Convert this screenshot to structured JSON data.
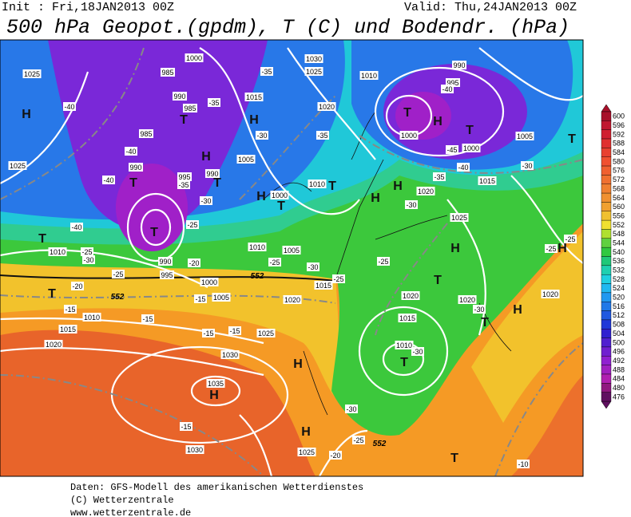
{
  "header": {
    "init": "Init : Fri,18JAN2013 00Z",
    "valid": "Valid: Thu,24JAN2013 00Z",
    "title": "500 hPa Geopot.(gpdm), T (C) und Bodendr. (hPa)"
  },
  "colorbar": {
    "levels": [
      600,
      596,
      592,
      588,
      584,
      580,
      576,
      572,
      568,
      564,
      560,
      556,
      552,
      548,
      544,
      540,
      536,
      532,
      528,
      524,
      520,
      516,
      512,
      508,
      504,
      500,
      496,
      492,
      488,
      484,
      480,
      476
    ],
    "colors": [
      "#a8102a",
      "#c01830",
      "#d02030",
      "#e03030",
      "#e84030",
      "#f05030",
      "#f06030",
      "#f07030",
      "#f08030",
      "#f09030",
      "#f0a030",
      "#f0c030",
      "#f0e030",
      "#b0e030",
      "#60d040",
      "#30c840",
      "#20c878",
      "#20d0b0",
      "#20d0e0",
      "#20b8f0",
      "#2098f0",
      "#2078e8",
      "#2058e0",
      "#2038d8",
      "#3020d0",
      "#5020d0",
      "#7020d0",
      "#9020d0",
      "#a020c0",
      "#b020b0",
      "#901880",
      "#601060"
    ]
  },
  "map": {
    "pressure_labels": [
      "1025",
      "1000",
      "985",
      "990",
      "985",
      "985",
      "990",
      "995",
      "990",
      "1005",
      "1000",
      "1015",
      "1030",
      "1025",
      "1020",
      "1010",
      "990",
      "995",
      "1000",
      "1000",
      "1005",
      "1015",
      "1020",
      "1025",
      "1010",
      "1025",
      "1010",
      "1010",
      "1005",
      "990",
      "995",
      "1000",
      "1005",
      "1015",
      "1020",
      "1010",
      "1015",
      "1020",
      "1025",
      "1030",
      "1035",
      "1030",
      "1025",
      "1020",
      "1015",
      "1020",
      "1010",
      "1020"
    ],
    "temperature_labels": [
      "-40",
      "-35",
      "-35",
      "-30",
      "-35",
      "-40",
      "-40",
      "-40",
      "-35",
      "-30",
      "-25",
      "-25",
      "-30",
      "-25",
      "-20",
      "-15",
      "-15",
      "-15",
      "-15",
      "-15",
      "-20",
      "-25",
      "-30",
      "-25",
      "-25",
      "-30",
      "-35",
      "-40",
      "-45",
      "-40",
      "-30",
      "-25",
      "-25",
      "-30",
      "-30",
      "-30",
      "-25",
      "-20",
      "-15",
      "-10"
    ],
    "height_labels": [
      "552",
      "552",
      "552"
    ],
    "centers": [
      "H",
      "T",
      "H",
      "T",
      "H",
      "T",
      "T",
      "H",
      "T",
      "T",
      "H",
      "T",
      "T",
      "H",
      "H",
      "T",
      "H",
      "H",
      "T",
      "T",
      "T",
      "H",
      "T",
      "H",
      "T",
      "H",
      "H",
      "T"
    ]
  },
  "footer": {
    "source": "Daten: GFS-Modell des amerikanischen Wetterdienstes",
    "copyright": "(C) Wetterzentrale",
    "url": "www.wetterzentrale.de"
  }
}
